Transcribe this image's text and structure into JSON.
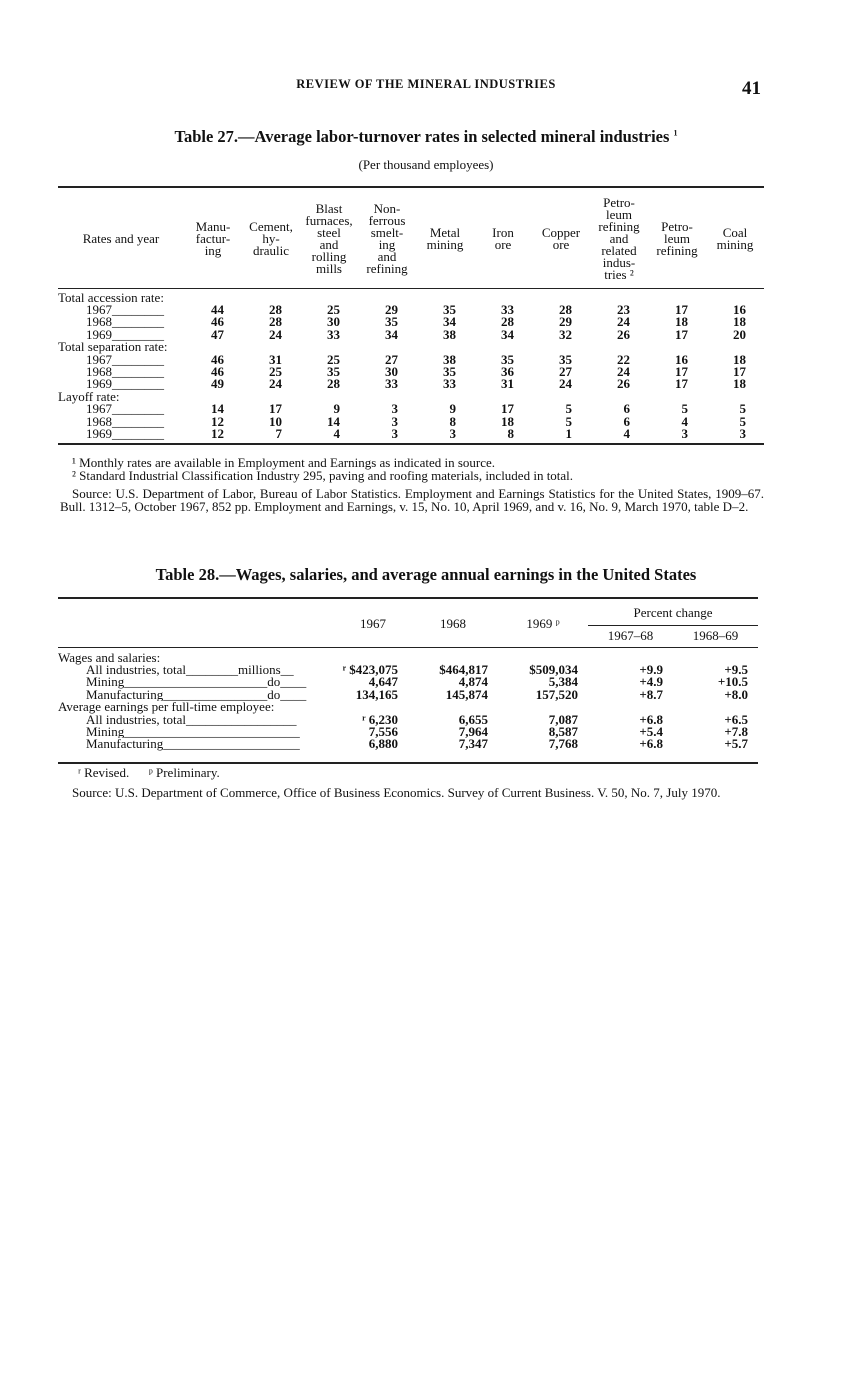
{
  "running_head": "REVIEW OF THE MINERAL INDUSTRIES",
  "page_number": "41",
  "table27": {
    "title": "Table 27.—Average labor-turnover rates in selected mineral industries",
    "title_footnote": "1",
    "subtitle": "(Per thousand employees)",
    "headers": [
      "Rates and year",
      "Manu-\nfactur-\ning",
      "Cement,\nhy-\ndraulic",
      "Blast\nfurnaces,\nsteel\nand\nrolling\nmills",
      "Non-\nferrous\nsmelt-\ning\nand\nrefining",
      "Metal\nmining",
      "Iron\nore",
      "Copper\nore",
      "Petro-\nleum\nrefining\nand\nrelated\nindus-\ntries ²",
      "Petro-\nleum\nrefining",
      "Coal\nmining"
    ],
    "groups": [
      {
        "label": "Total accession rate:",
        "rows": [
          {
            "year": "1967",
            "values": [
              "44",
              "28",
              "25",
              "29",
              "35",
              "33",
              "28",
              "23",
              "17",
              "16"
            ]
          },
          {
            "year": "1968",
            "values": [
              "46",
              "28",
              "30",
              "35",
              "34",
              "28",
              "29",
              "24",
              "18",
              "18"
            ]
          },
          {
            "year": "1969",
            "values": [
              "47",
              "24",
              "33",
              "34",
              "38",
              "34",
              "32",
              "26",
              "17",
              "20"
            ]
          }
        ]
      },
      {
        "label": "Total separation rate:",
        "rows": [
          {
            "year": "1967",
            "values": [
              "46",
              "31",
              "25",
              "27",
              "38",
              "35",
              "35",
              "22",
              "16",
              "18"
            ]
          },
          {
            "year": "1968",
            "values": [
              "46",
              "25",
              "35",
              "30",
              "35",
              "36",
              "27",
              "24",
              "17",
              "17"
            ]
          },
          {
            "year": "1969",
            "values": [
              "49",
              "24",
              "28",
              "33",
              "33",
              "31",
              "24",
              "26",
              "17",
              "18"
            ]
          }
        ]
      },
      {
        "label": "Layoff rate:",
        "rows": [
          {
            "year": "1967",
            "values": [
              "14",
              "17",
              "9",
              "3",
              "9",
              "17",
              "5",
              "6",
              "5",
              "5"
            ]
          },
          {
            "year": "1968",
            "values": [
              "12",
              "10",
              "14",
              "3",
              "8",
              "18",
              "5",
              "6",
              "4",
              "5"
            ]
          },
          {
            "year": "1969",
            "values": [
              "12",
              "7",
              "4",
              "3",
              "3",
              "8",
              "1",
              "4",
              "3",
              "3"
            ]
          }
        ]
      }
    ],
    "footnotes": [
      "¹ Monthly rates are available in Employment and Earnings as indicated in source.",
      "² Standard Industrial Classification Industry 295, paving and roofing materials, included in total."
    ],
    "source": "Source: U.S. Department of Labor, Bureau of Labor Statistics. Employment and Earnings Statistics for the United States, 1909–67. Bull. 1312–5, October 1967, 852 pp. Employment and Earnings, v. 15, No. 10, April 1969, and v. 16, No. 9, March 1970, table D–2."
  },
  "table28": {
    "title": "Table 28.—Wages, salaries, and average annual earnings in the United States",
    "headers": {
      "y1967": "1967",
      "y1968": "1968",
      "y1969": "1969 ᵖ",
      "percent_change": "Percent change",
      "pc1": "1967–68",
      "pc2": "1968–69"
    },
    "groups": [
      {
        "label": "Wages and salaries:",
        "rows": [
          {
            "label": "All industries, total________millions__",
            "values": [
              "ʳ $423,075",
              "$464,817",
              "$509,034",
              "+9.9",
              "+9.5"
            ]
          },
          {
            "label": "Mining______________________do____",
            "values": [
              "4,647",
              "4,874",
              "5,384",
              "+4.9",
              "+10.5"
            ]
          },
          {
            "label": "Manufacturing________________do____",
            "values": [
              "134,165",
              "145,874",
              "157,520",
              "+8.7",
              "+8.0"
            ]
          }
        ]
      },
      {
        "label": "Average earnings per full-time employee:",
        "rows": [
          {
            "label": "All industries, total_________________",
            "values": [
              "ʳ 6,230",
              "6,655",
              "7,087",
              "+6.8",
              "+6.5"
            ]
          },
          {
            "label": "Mining___________________________",
            "values": [
              "7,556",
              "7,964",
              "8,587",
              "+5.4",
              "+7.8"
            ]
          },
          {
            "label": "Manufacturing_____________________",
            "values": [
              "6,880",
              "7,347",
              "7,768",
              "+6.8",
              "+5.7"
            ]
          }
        ]
      }
    ],
    "footnote": "ʳ Revised.      ᵖ Preliminary.",
    "source": "Source: U.S. Department of Commerce, Office of Business Economics. Survey of Current Business. V. 50, No. 7, July 1970."
  }
}
